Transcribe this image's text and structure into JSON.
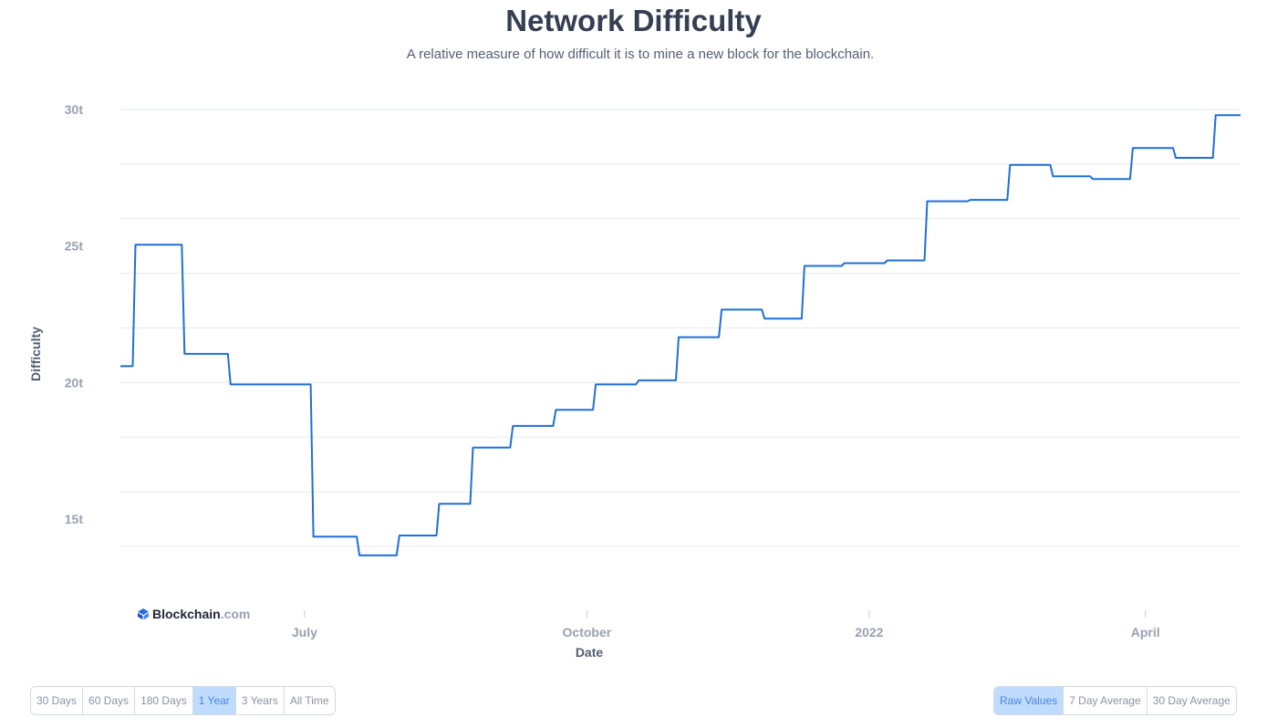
{
  "header": {
    "title": "Network Difficulty",
    "subtitle": "A relative measure of how difficult it is to mine a new block for the blockchain."
  },
  "brand": {
    "name": "Blockchain",
    "suffix": ".com"
  },
  "range_buttons": [
    {
      "label": "30 Days",
      "active": false
    },
    {
      "label": "60 Days",
      "active": false
    },
    {
      "label": "180 Days",
      "active": false
    },
    {
      "label": "1 Year",
      "active": true
    },
    {
      "label": "3 Years",
      "active": false
    },
    {
      "label": "All Time",
      "active": false
    }
  ],
  "value_buttons": [
    {
      "label": "Raw Values",
      "active": true
    },
    {
      "label": "7 Day Average",
      "active": false
    },
    {
      "label": "30 Day Average",
      "active": false
    }
  ],
  "colors": {
    "line": "#1f6fd8",
    "grid": "#e6e9ee",
    "tick": "#98a1b2",
    "active_button": "#bfdbfe"
  },
  "chart_data": {
    "type": "line",
    "xlabel": "Date",
    "ylabel": "Difficulty",
    "y_ticks": [
      {
        "value": 15,
        "label": "15t"
      },
      {
        "value": 20,
        "label": "20t"
      },
      {
        "value": 25,
        "label": "25t"
      },
      {
        "value": 30,
        "label": "30t"
      }
    ],
    "ylim": [
      12,
      30
    ],
    "x_range": [
      "2021-05-02",
      "2022-05-02"
    ],
    "x_ticks": [
      {
        "date": "2021-07-01",
        "label": "July"
      },
      {
        "date": "2021-10-01",
        "label": "October"
      },
      {
        "date": "2022-01-01",
        "label": "2022"
      },
      {
        "date": "2022-04-01",
        "label": "April"
      }
    ],
    "grid": true,
    "series": [
      {
        "values": [
          {
            "x": "2021-05-02",
            "y": 20.6
          },
          {
            "x": "2021-05-06",
            "y": 25.05
          },
          {
            "x": "2021-05-22",
            "y": 21.05
          },
          {
            "x": "2021-06-06",
            "y": 19.93
          },
          {
            "x": "2021-07-03",
            "y": 14.36
          },
          {
            "x": "2021-07-18",
            "y": 13.67
          },
          {
            "x": "2021-07-31",
            "y": 14.4
          },
          {
            "x": "2021-08-13",
            "y": 15.56
          },
          {
            "x": "2021-08-24",
            "y": 17.62
          },
          {
            "x": "2021-09-06",
            "y": 18.41
          },
          {
            "x": "2021-09-20",
            "y": 19.0
          },
          {
            "x": "2021-10-03",
            "y": 19.93
          },
          {
            "x": "2021-10-17",
            "y": 20.08
          },
          {
            "x": "2021-10-30",
            "y": 21.66
          },
          {
            "x": "2021-11-13",
            "y": 22.67
          },
          {
            "x": "2021-11-27",
            "y": 22.34
          },
          {
            "x": "2021-12-10",
            "y": 24.27
          },
          {
            "x": "2021-12-23",
            "y": 24.37
          },
          {
            "x": "2022-01-06",
            "y": 24.47
          },
          {
            "x": "2022-01-19",
            "y": 26.64
          },
          {
            "x": "2022-02-02",
            "y": 26.69
          },
          {
            "x": "2022-02-15",
            "y": 27.97
          },
          {
            "x": "2022-03-01",
            "y": 27.55
          },
          {
            "x": "2022-03-14",
            "y": 27.45
          },
          {
            "x": "2022-03-27",
            "y": 28.59
          },
          {
            "x": "2022-04-10",
            "y": 28.23
          },
          {
            "x": "2022-04-23",
            "y": 29.79
          }
        ]
      }
    ]
  }
}
